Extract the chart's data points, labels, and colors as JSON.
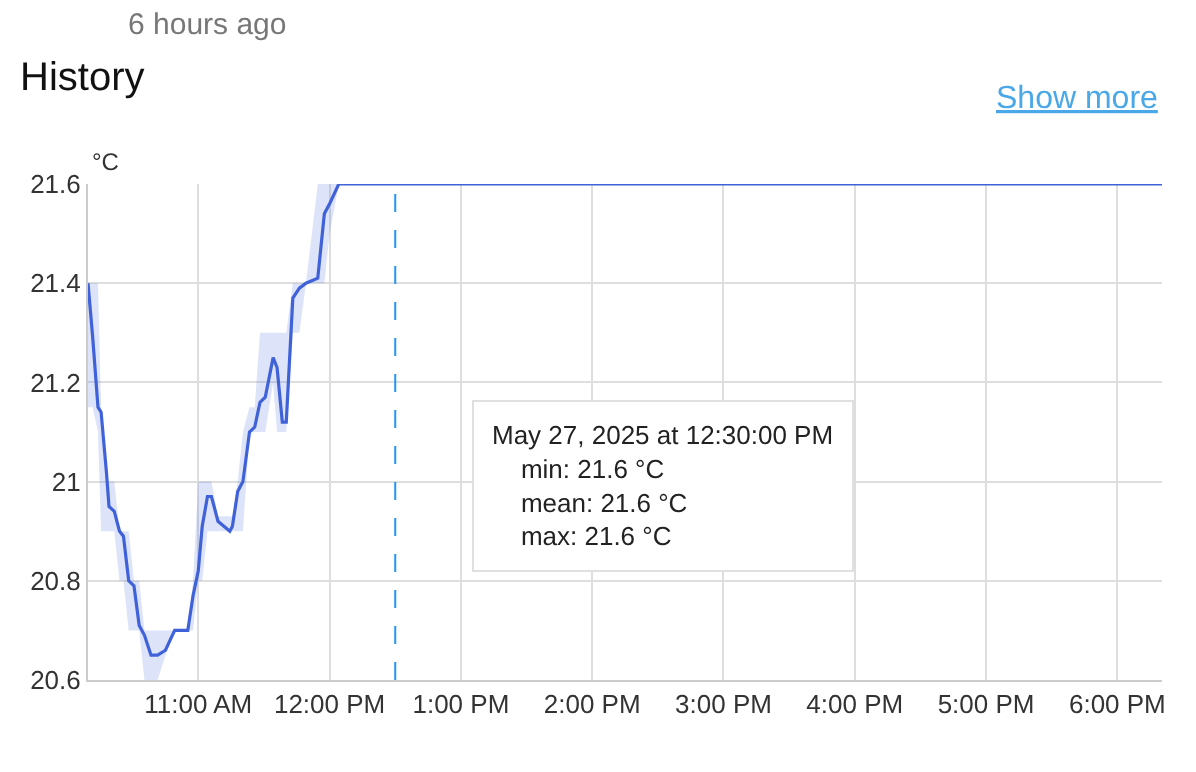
{
  "chart_data": {
    "type": "line",
    "title": "History",
    "ylabel": "°C",
    "annotations": [
      "6 hours ago",
      "Show more",
      "May 27, 2025 at 12:30:00 PM\nmin: 21.6 °C\nmean: 21.6 °C\nmax: 21.6 °C"
    ],
    "x": [
      10.16,
      10.196,
      10.236,
      10.26,
      10.3,
      10.32,
      10.36,
      10.4,
      10.43,
      10.47,
      10.51,
      10.55,
      10.59,
      10.64,
      10.69,
      10.75,
      10.82,
      10.92,
      10.96,
      11.0,
      11.03,
      11.07,
      11.1,
      11.15,
      11.24,
      11.26,
      11.3,
      11.34,
      11.39,
      11.43,
      11.47,
      11.51,
      11.57,
      11.6,
      11.64,
      11.67,
      11.72,
      11.77,
      11.82,
      11.91,
      11.96,
      12.0,
      12.07,
      18.34
    ],
    "series": [
      {
        "color": "#4062d8",
        "values": [
          21.4,
          21.29,
          21.15,
          21.14,
          21.02,
          20.95,
          20.94,
          20.9,
          20.89,
          20.8,
          20.79,
          20.71,
          20.69,
          20.65,
          20.65,
          20.66,
          20.7,
          20.7,
          20.77,
          20.82,
          20.91,
          20.97,
          20.97,
          20.92,
          20.9,
          20.91,
          20.98,
          21.0,
          21.1,
          21.11,
          21.16,
          21.17,
          21.25,
          21.23,
          21.12,
          21.12,
          21.37,
          21.39,
          21.4,
          21.41,
          21.54,
          21.56,
          21.6,
          21.6
        ],
        "lower": [
          21.15,
          21.15,
          21.1,
          20.9,
          20.9,
          20.9,
          20.9,
          20.8,
          20.8,
          20.7,
          20.7,
          20.7,
          20.6,
          20.6,
          20.6,
          20.65,
          20.7,
          20.7,
          20.7,
          20.8,
          20.8,
          20.9,
          20.9,
          20.9,
          20.9,
          20.9,
          20.9,
          20.9,
          21.1,
          21.1,
          21.1,
          21.1,
          21.2,
          21.1,
          21.1,
          21.1,
          21.3,
          21.3,
          21.4,
          21.4,
          21.4,
          21.5,
          21.6,
          21.6
        ],
        "upper": [
          21.4,
          21.4,
          21.4,
          21.15,
          21.0,
          21.0,
          21.0,
          20.9,
          20.9,
          20.9,
          20.8,
          20.8,
          20.7,
          20.7,
          20.7,
          20.7,
          20.7,
          20.7,
          20.8,
          21.0,
          21.0,
          21.0,
          21.0,
          20.93,
          20.93,
          20.93,
          21.0,
          21.1,
          21.15,
          21.15,
          21.3,
          21.3,
          21.3,
          21.3,
          21.3,
          21.3,
          21.4,
          21.4,
          21.4,
          21.6,
          21.6,
          21.6,
          21.6,
          21.6
        ]
      }
    ],
    "xlim": [
      10.16,
      18.34
    ],
    "ylim": [
      20.6,
      21.6
    ],
    "xticks": [
      {
        "value": 11,
        "label": "11:00 AM"
      },
      {
        "value": 12,
        "label": "12:00 PM"
      },
      {
        "value": 13,
        "label": "1:00 PM"
      },
      {
        "value": 14,
        "label": "2:00 PM"
      },
      {
        "value": 15,
        "label": "3:00 PM"
      },
      {
        "value": 16,
        "label": "4:00 PM"
      },
      {
        "value": 17,
        "label": "5:00 PM"
      },
      {
        "value": 18,
        "label": "6:00 PM"
      }
    ],
    "yticks": [
      20.6,
      20.8,
      21,
      21.2,
      21.4,
      21.6
    ],
    "ref_lines": [
      {
        "axis": "x",
        "value": 12.5,
        "label": null,
        "color": "#2196f3",
        "line_style": "dashed"
      }
    ],
    "grid": true,
    "marker": "none",
    "line_style": "solid"
  }
}
